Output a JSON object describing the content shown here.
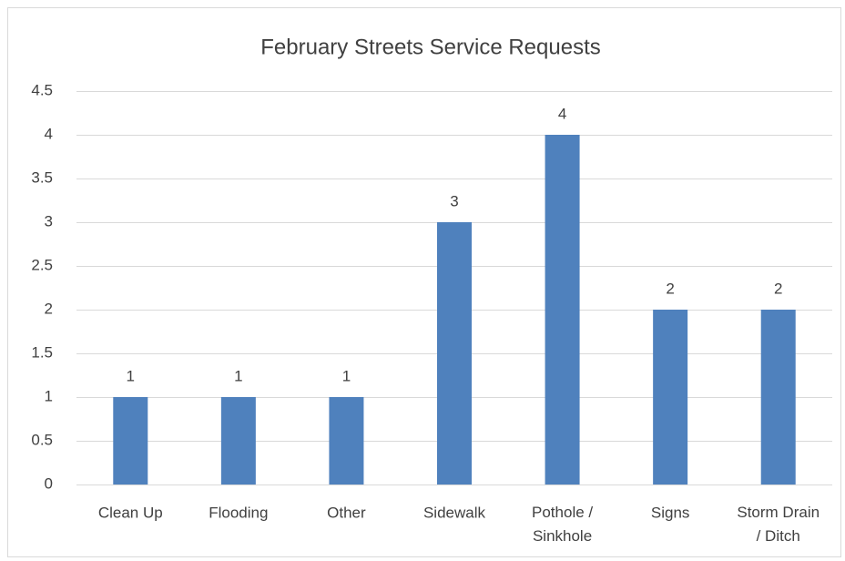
{
  "chart_data": {
    "type": "bar",
    "title": "February Streets Service Requests",
    "categories": [
      "Clean Up",
      "Flooding",
      "Other",
      "Sidewalk",
      "Pothole / Sinkhole",
      "Signs",
      "Storm Drain / Ditch"
    ],
    "values": [
      1,
      1,
      1,
      3,
      4,
      2,
      2
    ],
    "color": "#4f81bd",
    "ylim": [
      0,
      4.5
    ],
    "yticks": [
      0,
      0.5,
      1,
      1.5,
      2,
      2.5,
      3,
      3.5,
      4,
      4.5
    ],
    "grid": true
  }
}
